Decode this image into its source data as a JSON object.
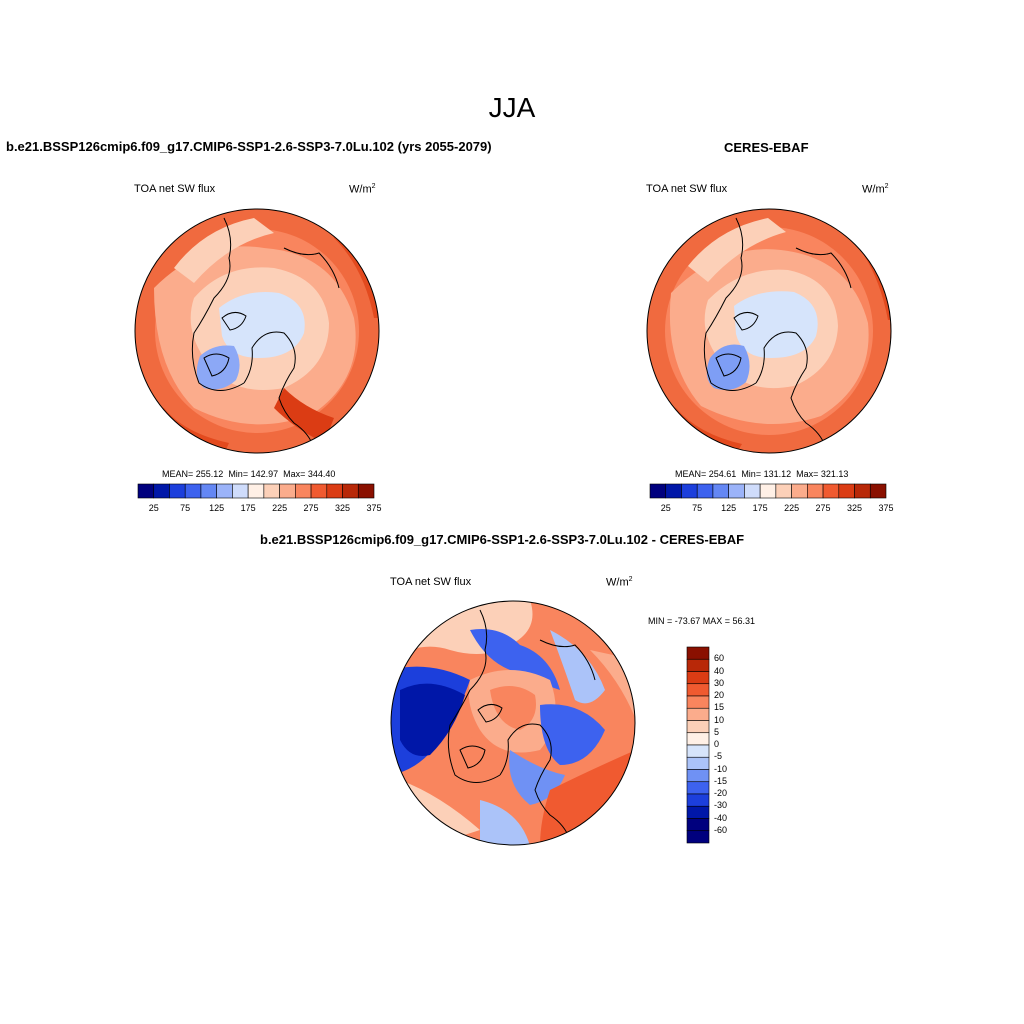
{
  "main_title": "JJA",
  "colors": {
    "hbar": [
      "#00007e",
      "#0017a8",
      "#1c3fdc",
      "#3d62ef",
      "#6487f4",
      "#9bb3f9",
      "#cfdcfb",
      "#fff0e6",
      "#fcd0b8",
      "#fbac8c",
      "#f9855e",
      "#f05a30",
      "#db3c14",
      "#b82808",
      "#8a1000"
    ],
    "vbar": [
      "#8a1000",
      "#b82808",
      "#db3c14",
      "#f05a30",
      "#f9855e",
      "#fbac8c",
      "#fcd0b8",
      "#fff0e6",
      "#d6e4fb",
      "#abc3f9",
      "#6f91f4",
      "#3d62ef",
      "#1c3fdc",
      "#0017a8",
      "#00007e",
      "#00007e"
    ]
  },
  "panels": {
    "model": {
      "title": "b.e21.BSSP126cmip6.f09_g17.CMIP6-SSP1-2.6-SSP3-7.0Lu.102 (yrs 2055-2079)",
      "variable": "TOA net SW flux",
      "units": "W/m",
      "units_sup": "2",
      "mean_label": "MEAN= 255.12",
      "min_label": "Min= 142.97",
      "max_label": "Max= 344.40",
      "colorbar_labels": [
        "25",
        "75",
        "125",
        "175",
        "225",
        "275",
        "325",
        "375"
      ]
    },
    "obs": {
      "title": "CERES-EBAF",
      "variable": "TOA net SW flux",
      "units": "W/m",
      "units_sup": "2",
      "mean_label": "MEAN= 254.61",
      "min_label": "Min= 131.12",
      "max_label": "Max= 321.13",
      "colorbar_labels": [
        "25",
        "75",
        "125",
        "175",
        "225",
        "275",
        "325",
        "375"
      ]
    },
    "diff": {
      "title": "b.e21.BSSP126cmip6.f09_g17.CMIP6-SSP1-2.6-SSP3-7.0Lu.102 - CERES-EBAF",
      "variable": "TOA net SW flux",
      "units": "W/m",
      "units_sup": "2",
      "minmax_label": "MIN = -73.67 MAX =  56.31",
      "colorbar_labels": [
        "60",
        "40",
        "30",
        "20",
        "15",
        "10",
        "5",
        "0",
        "-5",
        "-10",
        "-15",
        "-20",
        "-30",
        "-40",
        "-60"
      ]
    }
  }
}
